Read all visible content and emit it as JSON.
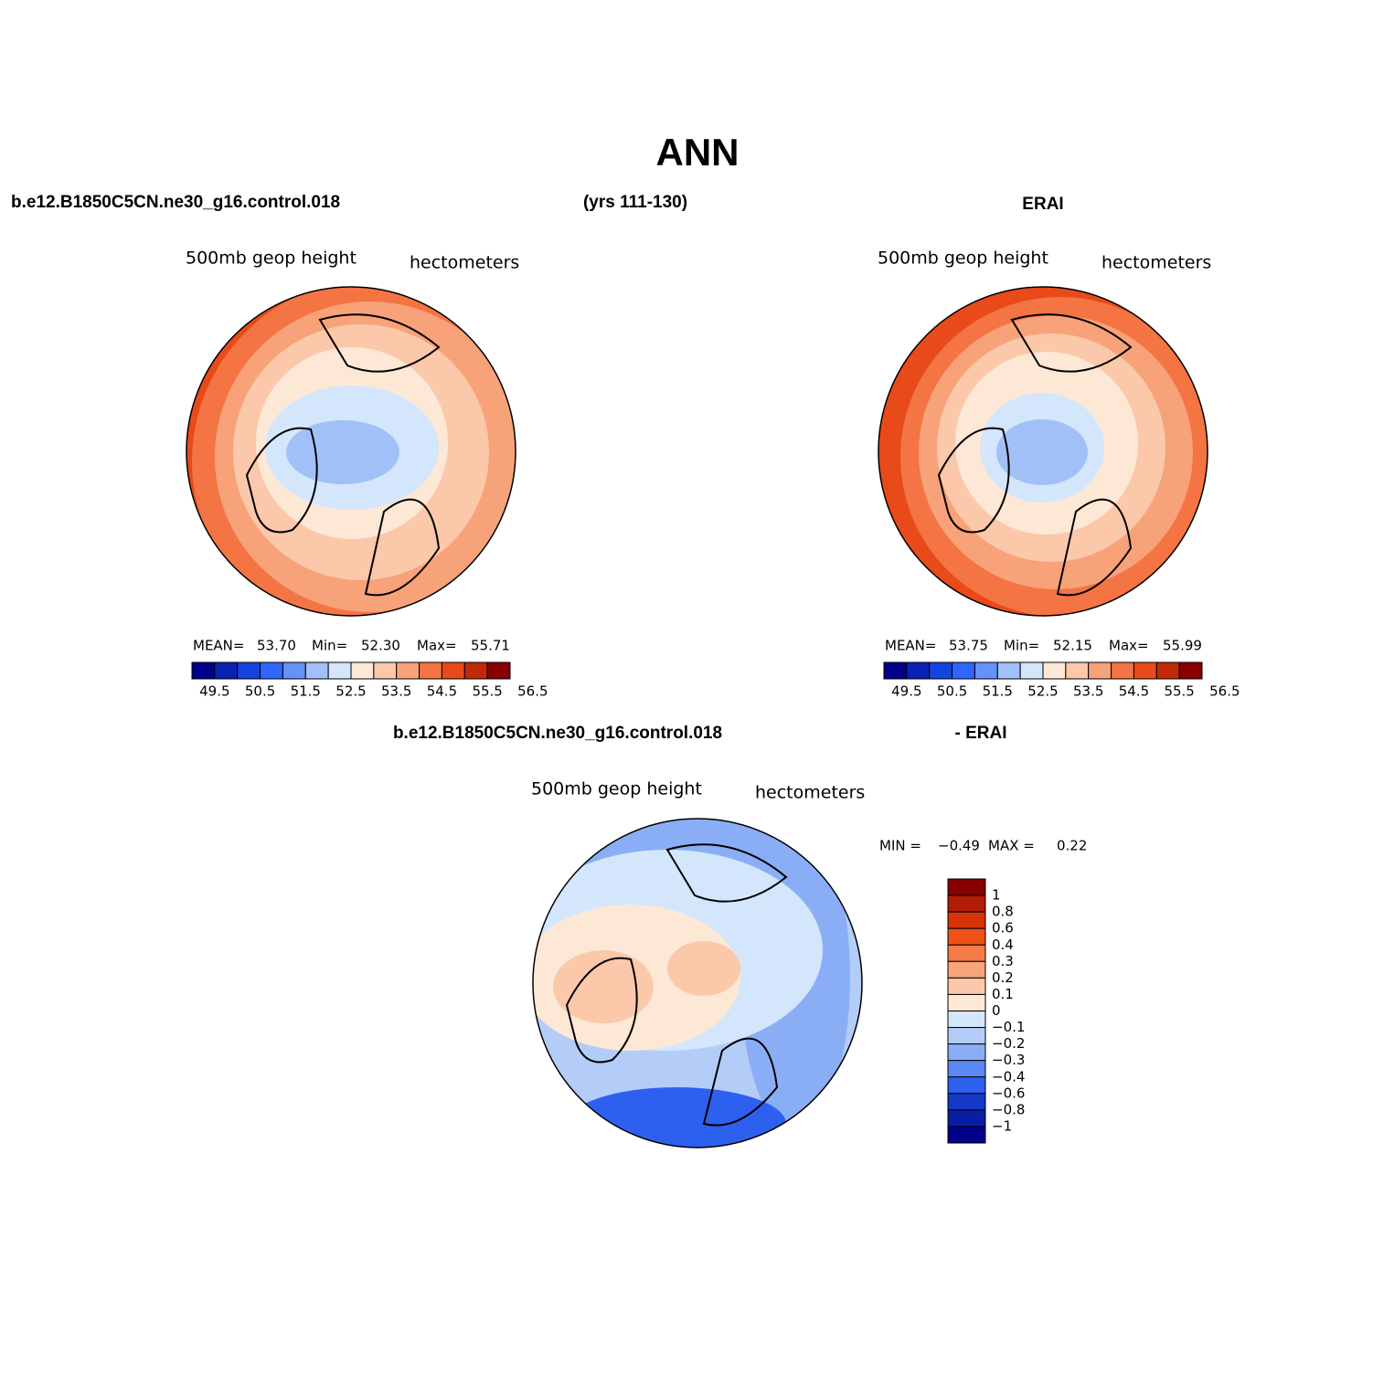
{
  "title": "ANN",
  "header": {
    "left_case": "b.e12.B1850C5CN.ne30_g16.control.018",
    "years": "(yrs 111-130)",
    "right_case": "ERAI"
  },
  "panels": [
    {
      "field": "500mb geop height",
      "units": "hectometers",
      "stats": [
        {
          "label": "MEAN=",
          "value": "53.70"
        },
        {
          "label": "Min=",
          "value": "52.30"
        },
        {
          "label": "Max=",
          "value": "55.71"
        }
      ]
    },
    {
      "field": "500mb geop height",
      "units": "hectometers",
      "stats": [
        {
          "label": "MEAN=",
          "value": "53.75"
        },
        {
          "label": "Min=",
          "value": "52.15"
        },
        {
          "label": "Max=",
          "value": "55.99"
        }
      ]
    }
  ],
  "colorbar": {
    "labels": [
      "49.5",
      "50.5",
      "51.5",
      "52.5",
      "53.5",
      "54.5",
      "55.5",
      "56.5"
    ],
    "colors": [
      "#00008b",
      "#0a22b4",
      "#1444e0",
      "#2e66ff",
      "#6492f7",
      "#a2c0f8",
      "#d4e6fc",
      "#fde8d6",
      "#fbc8aa",
      "#f8a27a",
      "#f47444",
      "#e84a1a",
      "#c02a08",
      "#880000"
    ]
  },
  "diff": {
    "case": "b.e12.B1850C5CN.ne30_g16.control.018",
    "minus": "- ERAI",
    "field": "500mb geop height",
    "units": "hectometers",
    "stats": [
      {
        "label": "MIN =",
        "value": "−0.49"
      },
      {
        "label": "MAX =",
        "value": "0.22"
      }
    ],
    "colorbar": {
      "labels": [
        "1",
        "0.8",
        "0.6",
        "0.4",
        "0.3",
        "0.2",
        "0.1",
        "0",
        "−0.1",
        "−0.2",
        "−0.3",
        "−0.4",
        "−0.6",
        "−0.8",
        "−1"
      ],
      "colors": [
        "#880000",
        "#b01c04",
        "#d83408",
        "#ee5218",
        "#f47a48",
        "#f8a47c",
        "#fbc8aa",
        "#fde8d6",
        "#d4e6fc",
        "#b4ccf8",
        "#8aaef6",
        "#5a88f4",
        "#2e60f0",
        "#1438c8",
        "#0a1ea4",
        "#00008b"
      ]
    }
  }
}
